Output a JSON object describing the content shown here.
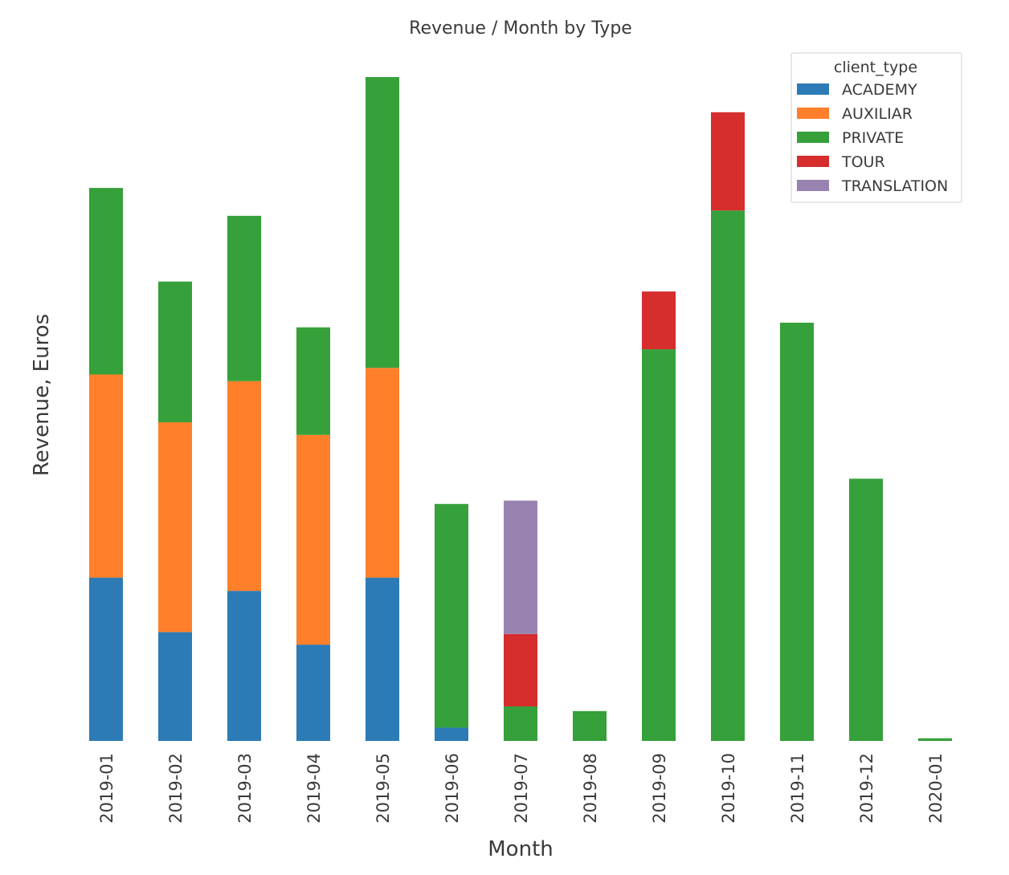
{
  "chart_data": {
    "type": "bar",
    "stacked": true,
    "title": "Revenue / Month by Type",
    "xlabel": "Month",
    "ylabel": "Revenue, Euros",
    "ylim": [
      0,
      1000
    ],
    "y_ticks_shown": false,
    "grid": false,
    "legend": {
      "title": "client_type",
      "placement": "top-right"
    },
    "categories": [
      "2019-01",
      "2019-02",
      "2019-03",
      "2019-04",
      "2019-05",
      "2019-06",
      "2019-07",
      "2019-08",
      "2019-09",
      "2019-10",
      "2019-11",
      "2019-12",
      "2020-01"
    ],
    "series": [
      {
        "name": "ACADEMY",
        "color": "#2c7bb6",
        "values": [
          246,
          164,
          226,
          145,
          246,
          20,
          0,
          0,
          0,
          0,
          0,
          0,
          0
        ]
      },
      {
        "name": "AUXILIAR",
        "color": "#ff7f2a",
        "values": [
          306,
          316,
          316,
          316,
          316,
          0,
          0,
          0,
          0,
          0,
          0,
          0,
          0
        ]
      },
      {
        "name": "PRIVATE",
        "color": "#36a03a",
        "values": [
          281,
          212,
          249,
          162,
          438,
          337,
          52,
          45,
          590,
          799,
          630,
          395,
          4
        ]
      },
      {
        "name": "TOUR",
        "color": "#d62d2d",
        "values": [
          0,
          0,
          0,
          0,
          0,
          0,
          109,
          0,
          87,
          148,
          0,
          0,
          0
        ]
      },
      {
        "name": "TRANSLATION",
        "color": "#9883b0",
        "values": [
          0,
          0,
          0,
          0,
          0,
          0,
          201,
          0,
          0,
          0,
          0,
          0,
          0
        ]
      }
    ]
  }
}
